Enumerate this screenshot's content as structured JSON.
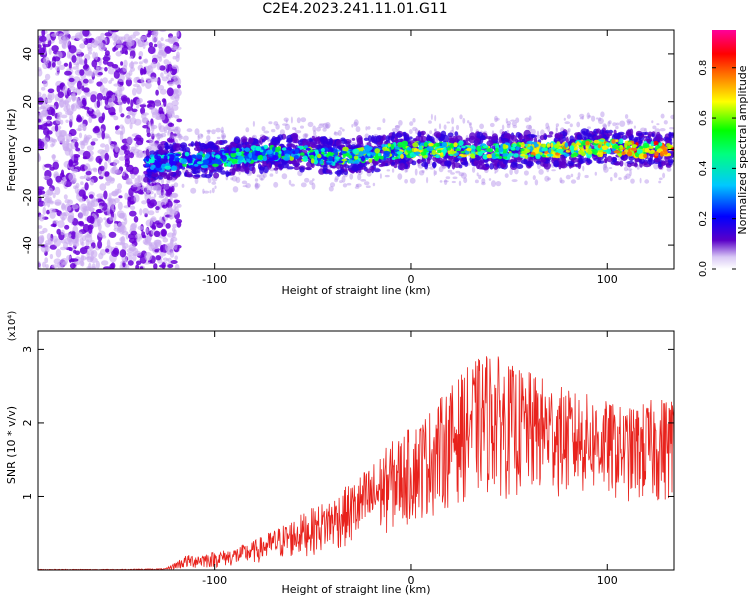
{
  "title": "C2E4.2023.241.11.01.G11",
  "chart_data": [
    {
      "type": "heatmap",
      "title": "C2E4.2023.241.11.01.G11",
      "xlabel": "Height of straight line (km)",
      "ylabel": "Frequency (Hz)",
      "xlim": [
        -190,
        134
      ],
      "ylim": [
        -50,
        50
      ],
      "x_ticks": [
        -100,
        0,
        100
      ],
      "y_ticks": [
        -40,
        -20,
        0,
        20,
        40
      ],
      "colorbar": {
        "label": "Normalized spectral amplitude",
        "range": [
          0,
          0.95
        ],
        "ticks": [
          0.0,
          0.2,
          0.4,
          0.6,
          0.8
        ],
        "colormap": [
          "#ffffff",
          "#5a00c8",
          "#0000ff",
          "#00c8ff",
          "#00ff00",
          "#ffff00",
          "#ff0000",
          "#ff0099"
        ]
      },
      "ridge": {
        "x": [
          -135,
          -120,
          -100,
          -80,
          -60,
          -40,
          -20,
          0,
          20,
          40,
          60,
          80,
          100,
          120,
          134
        ],
        "freq": [
          -6,
          -5,
          -4,
          -2,
          -1,
          -3,
          -2,
          0,
          0,
          -1,
          0,
          0,
          1,
          0,
          0
        ]
      },
      "grid": false
    },
    {
      "type": "line",
      "xlabel": "Height of straight line (km)",
      "ylabel": "SNR (10 * v/v)",
      "y_multiplier": "(x10⁴)",
      "xlim": [
        -190,
        134
      ],
      "ylim": [
        0,
        3.25
      ],
      "x_ticks": [
        -100,
        0,
        100
      ],
      "y_ticks": [
        1,
        2,
        3
      ],
      "series": [
        {
          "color": "#e8221c",
          "x": [
            -190,
            -150,
            -125,
            -115,
            -100,
            -90,
            -80,
            -70,
            -60,
            -50,
            -40,
            -30,
            -20,
            -10,
            0,
            10,
            20,
            30,
            40,
            50,
            60,
            70,
            80,
            90,
            100,
            110,
            120,
            134
          ],
          "envelope_high": [
            0.01,
            0.01,
            0.02,
            0.2,
            0.25,
            0.3,
            0.4,
            0.55,
            0.7,
            0.85,
            1.0,
            1.2,
            1.45,
            1.75,
            1.95,
            2.2,
            2.5,
            2.8,
            3.0,
            2.8,
            2.7,
            2.6,
            2.45,
            2.4,
            2.3,
            2.2,
            2.3,
            2.4
          ],
          "envelope_low": [
            0.0,
            0.0,
            0.0,
            0.01,
            0.03,
            0.05,
            0.08,
            0.12,
            0.15,
            0.2,
            0.25,
            0.3,
            0.4,
            0.5,
            0.6,
            0.7,
            0.85,
            0.95,
            1.0,
            0.95,
            0.95,
            1.0,
            0.95,
            1.0,
            0.95,
            0.9,
            0.85,
            0.9
          ]
        }
      ],
      "grid": false
    }
  ]
}
